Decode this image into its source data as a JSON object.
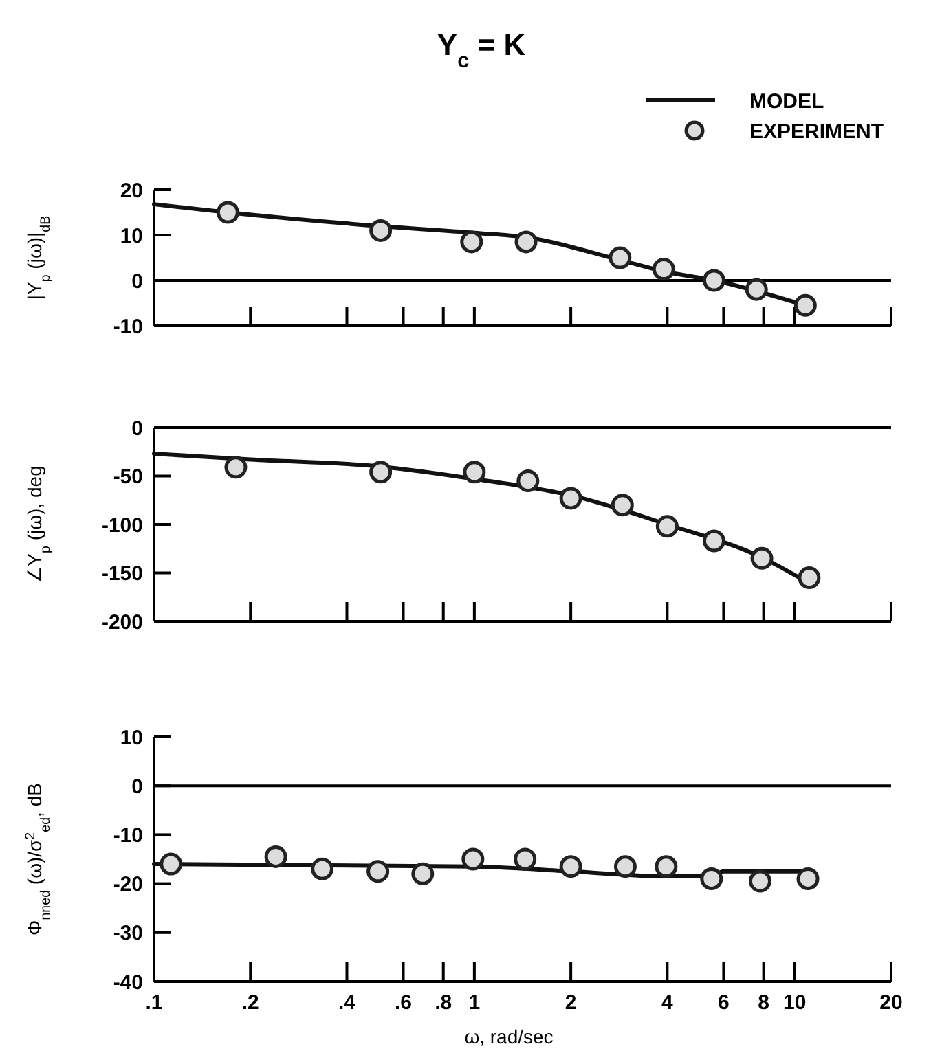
{
  "chart_data": [
    {
      "type": "line",
      "title": "Y$_{c}$ = K",
      "ylabel": "|Y$_{p}$ (jω)|$_{dB}$",
      "xlim": [
        0.1,
        20
      ],
      "ylim": [
        -10,
        20
      ],
      "yticks": [
        -10,
        0,
        10,
        20
      ],
      "log": "x",
      "tick_labels": "y",
      "legend": "top right",
      "xticks": [
        {
          "value": 0.1,
          "label": null
        },
        {
          "value": 0.2,
          "label": null
        },
        {
          "value": 0.4,
          "label": null
        },
        {
          "value": 0.6,
          "label": null
        },
        {
          "value": 0.8,
          "label": null
        },
        {
          "value": 1,
          "label": null
        },
        {
          "value": 2,
          "label": null
        },
        {
          "value": 4,
          "label": null
        },
        {
          "value": 6,
          "label": null
        },
        {
          "value": 8,
          "label": null
        },
        {
          "value": 10,
          "label": null
        },
        {
          "value": 20,
          "label": null
        }
      ],
      "ref_lines": [
        {
          "axis": "y",
          "value": 0,
          "color": "#000000"
        }
      ],
      "series": [
        {
          "name": "MODEL",
          "type": "line",
          "color": "#111111",
          "line_style": "solid",
          "x": [
            0.1,
            0.17,
            0.5,
            1,
            1.45,
            2.85,
            3.9,
            5.6,
            10.8
          ],
          "values": [
            16.8,
            15,
            12,
            10.5,
            9.5,
            4.5,
            2,
            0,
            -5.5
          ]
        },
        {
          "name": "EXPERIMENT",
          "type": "scatter",
          "color": "#222222",
          "marker": "circle",
          "x": [
            0.17,
            0.51,
            0.98,
            1.45,
            2.85,
            3.9,
            5.6,
            7.6,
            10.8
          ],
          "values": [
            15,
            11,
            8.5,
            8.5,
            5,
            2.5,
            0,
            -2,
            -5.5
          ]
        }
      ]
    },
    {
      "type": "line",
      "ylabel": "∠Y$_{p}$ (jω), deg",
      "xlim": [
        0.1,
        20
      ],
      "ylim": [
        -200,
        0
      ],
      "yticks": [
        -200,
        -150,
        -100,
        -50,
        0
      ],
      "log": "x",
      "tick_labels": "y",
      "xticks": [
        {
          "value": 0.1,
          "label": null
        },
        {
          "value": 0.2,
          "label": null
        },
        {
          "value": 0.4,
          "label": null
        },
        {
          "value": 0.6,
          "label": null
        },
        {
          "value": 0.8,
          "label": null
        },
        {
          "value": 1,
          "label": null
        },
        {
          "value": 2,
          "label": null
        },
        {
          "value": 4,
          "label": null
        },
        {
          "value": 6,
          "label": null
        },
        {
          "value": 8,
          "label": null
        },
        {
          "value": 10,
          "label": null
        },
        {
          "value": 20,
          "label": null
        }
      ],
      "series": [
        {
          "type": "line",
          "color": "#111111",
          "line_style": "solid",
          "x": [
            0.1,
            0.2,
            0.5,
            1,
            2,
            4,
            8,
            11
          ],
          "values": [
            -27,
            -33,
            -40,
            -53,
            -70,
            -100,
            -135,
            -160
          ]
        },
        {
          "type": "scatter",
          "color": "#222222",
          "marker": "circle",
          "x": [
            0.18,
            0.51,
            1,
            1.47,
            2,
            2.9,
            4,
            5.6,
            7.9,
            11.1
          ],
          "values": [
            -41,
            -46,
            -46,
            -55,
            -73,
            -80,
            -102,
            -117,
            -135,
            -155
          ]
        }
      ]
    },
    {
      "type": "line",
      "ylabel": "Φ$_{nned}$ (ω)/σ$^{2}$$_{ed}$, dB",
      "xlabel": "ω, rad/sec",
      "xlim": [
        0.1,
        20
      ],
      "ylim": [
        -40,
        10
      ],
      "yticks": [
        -40,
        -30,
        -20,
        -10,
        0,
        10
      ],
      "log": "x",
      "xticks": [
        {
          "value": 0.1,
          "label": ".1"
        },
        {
          "value": 0.2,
          "label": ".2"
        },
        {
          "value": 0.4,
          "label": ".4"
        },
        {
          "value": 0.6,
          "label": ".6"
        },
        {
          "value": 0.8,
          "label": ".8"
        },
        1,
        2,
        4,
        6,
        8,
        10,
        20
      ],
      "ref_lines": [
        {
          "axis": "y",
          "value": 0,
          "color": "#000000"
        }
      ],
      "series": [
        {
          "type": "line",
          "color": "#111111",
          "line_style": "solid",
          "x": [
            0.1,
            1,
            2,
            4,
            5.5,
            6,
            11
          ],
          "values": [
            -16,
            -16.5,
            -17.5,
            -18.5,
            -18.5,
            -17.5,
            -17.5
          ]
        },
        {
          "type": "scatter",
          "color": "#222222",
          "marker": "circle",
          "x": [
            0.113,
            0.24,
            0.335,
            0.5,
            0.69,
            0.99,
            1.44,
            2,
            2.96,
            3.97,
            5.5,
            7.8,
            11
          ],
          "values": [
            -16,
            -14.5,
            -17,
            -17.5,
            -18,
            -15,
            -15,
            -16.5,
            -16.5,
            -16.5,
            -19,
            -19.5,
            -19
          ]
        }
      ]
    }
  ]
}
